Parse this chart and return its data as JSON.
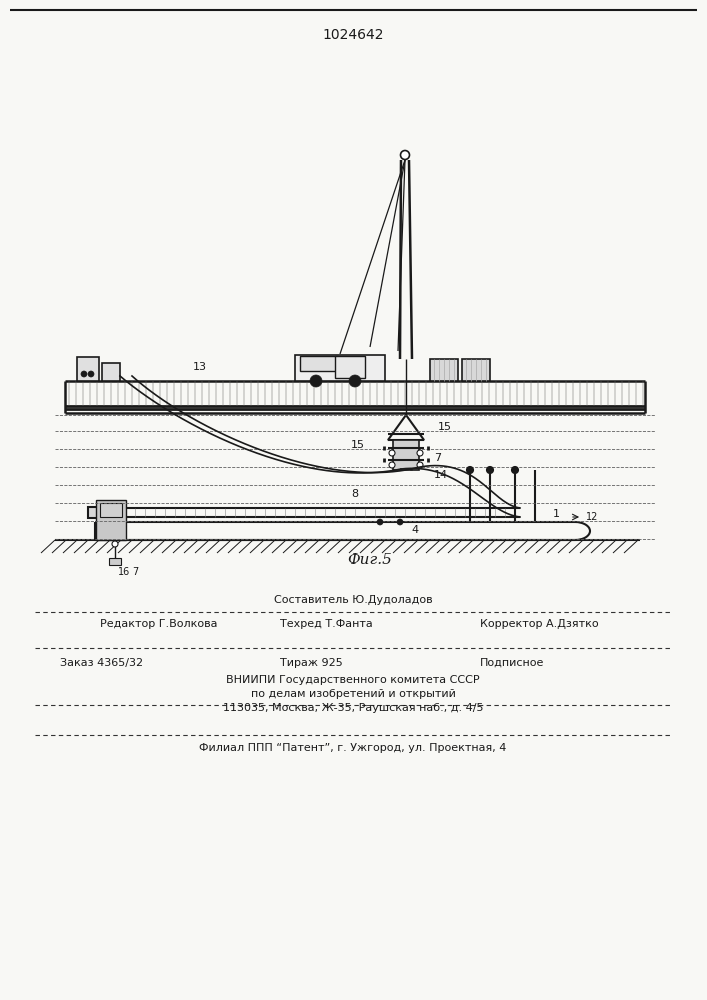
{
  "title_number": "1024642",
  "fig_label": "Фиг.5",
  "bg_color": "#f8f8f5",
  "line_color": "#1a1a1a",
  "footer_line0": "Составитель Ю.Дудоладов",
  "footer_line1a": "Редактор Г.Волкова",
  "footer_line1b": "Техред Т.Фанта",
  "footer_line1c": "Корректор А.Дзятко",
  "footer_line2a": "Заказ 4365/32",
  "footer_line2b": "Тираж 925",
  "footer_line2c": "Подписное",
  "footer_line3": "ВНИИПИ Государственного комитета СССР",
  "footer_line4": "по делам изобретений и открытий",
  "footer_line5": "113035, Москва, Ж-35, Раушская наб., д. 4/5",
  "footer_line6": "Филиал ППП “Патент”, г. Ужгород, ул. Проектная, 4"
}
